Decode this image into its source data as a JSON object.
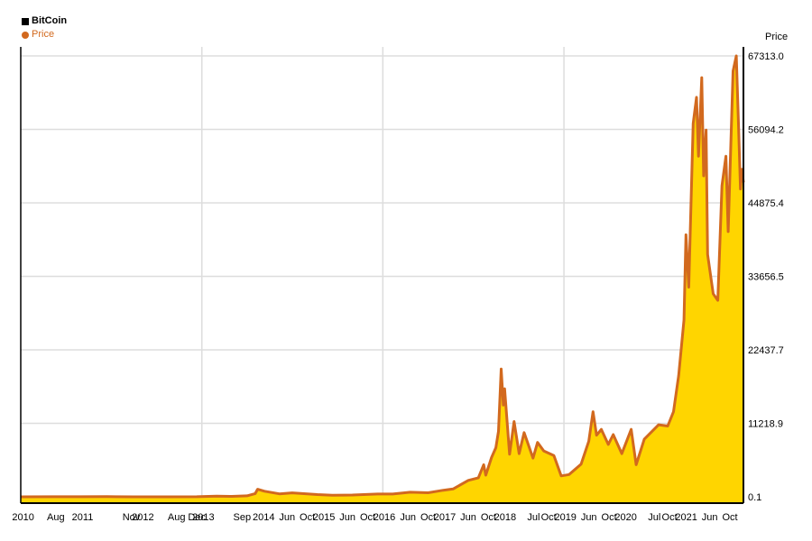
{
  "legend": {
    "title": "BitCoin",
    "series_label": "Price"
  },
  "colors": {
    "line": "#d2691e",
    "fill": "#ffd500",
    "grid": "#dddddd",
    "axis": "#000000"
  },
  "chart_data": {
    "type": "area",
    "title": "BitCoin",
    "ylabel": "Price",
    "xlabel": "",
    "grid": true,
    "legend_position": "top-left",
    "ylim": [
      0.1,
      67313.0
    ],
    "y_ticks": [
      "0.1",
      "11218.9",
      "22437.7",
      "33656.5",
      "44875.4",
      "56094.2",
      "67313.0"
    ],
    "x_tick_labels": [
      "2010",
      "Aug",
      "2011",
      "Nov",
      "2012",
      "Aug",
      "Dec",
      "2013",
      "Sep",
      "2014",
      "Jun",
      "Oct",
      "2015",
      "Jun",
      "Oct",
      "2016",
      "Jun",
      "Oct",
      "2017",
      "Jun",
      "Oct",
      "2018",
      "Jul",
      "Oct",
      "2019",
      "Jun",
      "Oct",
      "2020",
      "Jul",
      "Oct",
      "2021",
      "Jun",
      "Oct"
    ],
    "series": [
      {
        "name": "Price",
        "points": [
          [
            "2010-01-01",
            5
          ],
          [
            "2010-07-17",
            10
          ],
          [
            "2011-01-01",
            10
          ],
          [
            "2011-06-08",
            30
          ],
          [
            "2011-11-18",
            3
          ],
          [
            "2012-06-01",
            6
          ],
          [
            "2012-12-01",
            13
          ],
          [
            "2013-04-01",
            100
          ],
          [
            "2013-07-01",
            70
          ],
          [
            "2013-10-01",
            150
          ],
          [
            "2013-11-20",
            500
          ],
          [
            "2013-12-04",
            1150
          ],
          [
            "2014-01-15",
            850
          ],
          [
            "2014-04-15",
            450
          ],
          [
            "2014-07-01",
            600
          ],
          [
            "2014-12-01",
            350
          ],
          [
            "2015-03-01",
            250
          ],
          [
            "2015-07-01",
            280
          ],
          [
            "2015-12-01",
            430
          ],
          [
            "2016-03-01",
            420
          ],
          [
            "2016-06-15",
            700
          ],
          [
            "2016-10-01",
            620
          ],
          [
            "2017-01-01",
            1000
          ],
          [
            "2017-03-01",
            1200
          ],
          [
            "2017-06-01",
            2500
          ],
          [
            "2017-08-01",
            2900
          ],
          [
            "2017-09-02",
            4900
          ],
          [
            "2017-09-15",
            3300
          ],
          [
            "2017-10-20",
            6000
          ],
          [
            "2017-11-15",
            7500
          ],
          [
            "2017-12-01",
            10000
          ],
          [
            "2017-12-17",
            19500
          ],
          [
            "2017-12-30",
            14000
          ],
          [
            "2018-01-07",
            16500
          ],
          [
            "2018-02-06",
            6500
          ],
          [
            "2018-03-05",
            11500
          ],
          [
            "2018-04-05",
            6600
          ],
          [
            "2018-05-05",
            9800
          ],
          [
            "2018-06-28",
            5900
          ],
          [
            "2018-07-25",
            8300
          ],
          [
            "2018-09-01",
            7000
          ],
          [
            "2018-11-01",
            6300
          ],
          [
            "2018-12-15",
            3200
          ],
          [
            "2019-02-01",
            3400
          ],
          [
            "2019-04-15",
            5000
          ],
          [
            "2019-05-31",
            8500
          ],
          [
            "2019-06-26",
            13000
          ],
          [
            "2019-07-17",
            9400
          ],
          [
            "2019-08-15",
            10300
          ],
          [
            "2019-09-26",
            8000
          ],
          [
            "2019-10-26",
            9500
          ],
          [
            "2019-12-17",
            6600
          ],
          [
            "2020-02-12",
            10300
          ],
          [
            "2020-03-13",
            4900
          ],
          [
            "2020-05-01",
            8800
          ],
          [
            "2020-07-27",
            11000
          ],
          [
            "2020-09-20",
            10800
          ],
          [
            "2020-10-25",
            13000
          ],
          [
            "2020-11-25",
            18500
          ],
          [
            "2020-12-27",
            27000
          ],
          [
            "2021-01-08",
            40000
          ],
          [
            "2021-01-25",
            32000
          ],
          [
            "2021-02-21",
            57000
          ],
          [
            "2021-03-13",
            61000
          ],
          [
            "2021-03-25",
            52000
          ],
          [
            "2021-04-14",
            64000
          ],
          [
            "2021-04-25",
            49000
          ],
          [
            "2021-05-10",
            56000
          ],
          [
            "2021-05-19",
            37000
          ],
          [
            "2021-06-22",
            31000
          ],
          [
            "2021-07-20",
            30000
          ],
          [
            "2021-08-14",
            47500
          ],
          [
            "2021-09-07",
            52000
          ],
          [
            "2021-09-21",
            40500
          ],
          [
            "2021-10-20",
            65000
          ],
          [
            "2021-11-09",
            67313
          ],
          [
            "2021-11-22",
            57000
          ],
          [
            "2021-12-04",
            47000
          ],
          [
            "2021-12-12",
            50000
          ],
          [
            "2021-12-22",
            48000
          ]
        ]
      }
    ]
  }
}
